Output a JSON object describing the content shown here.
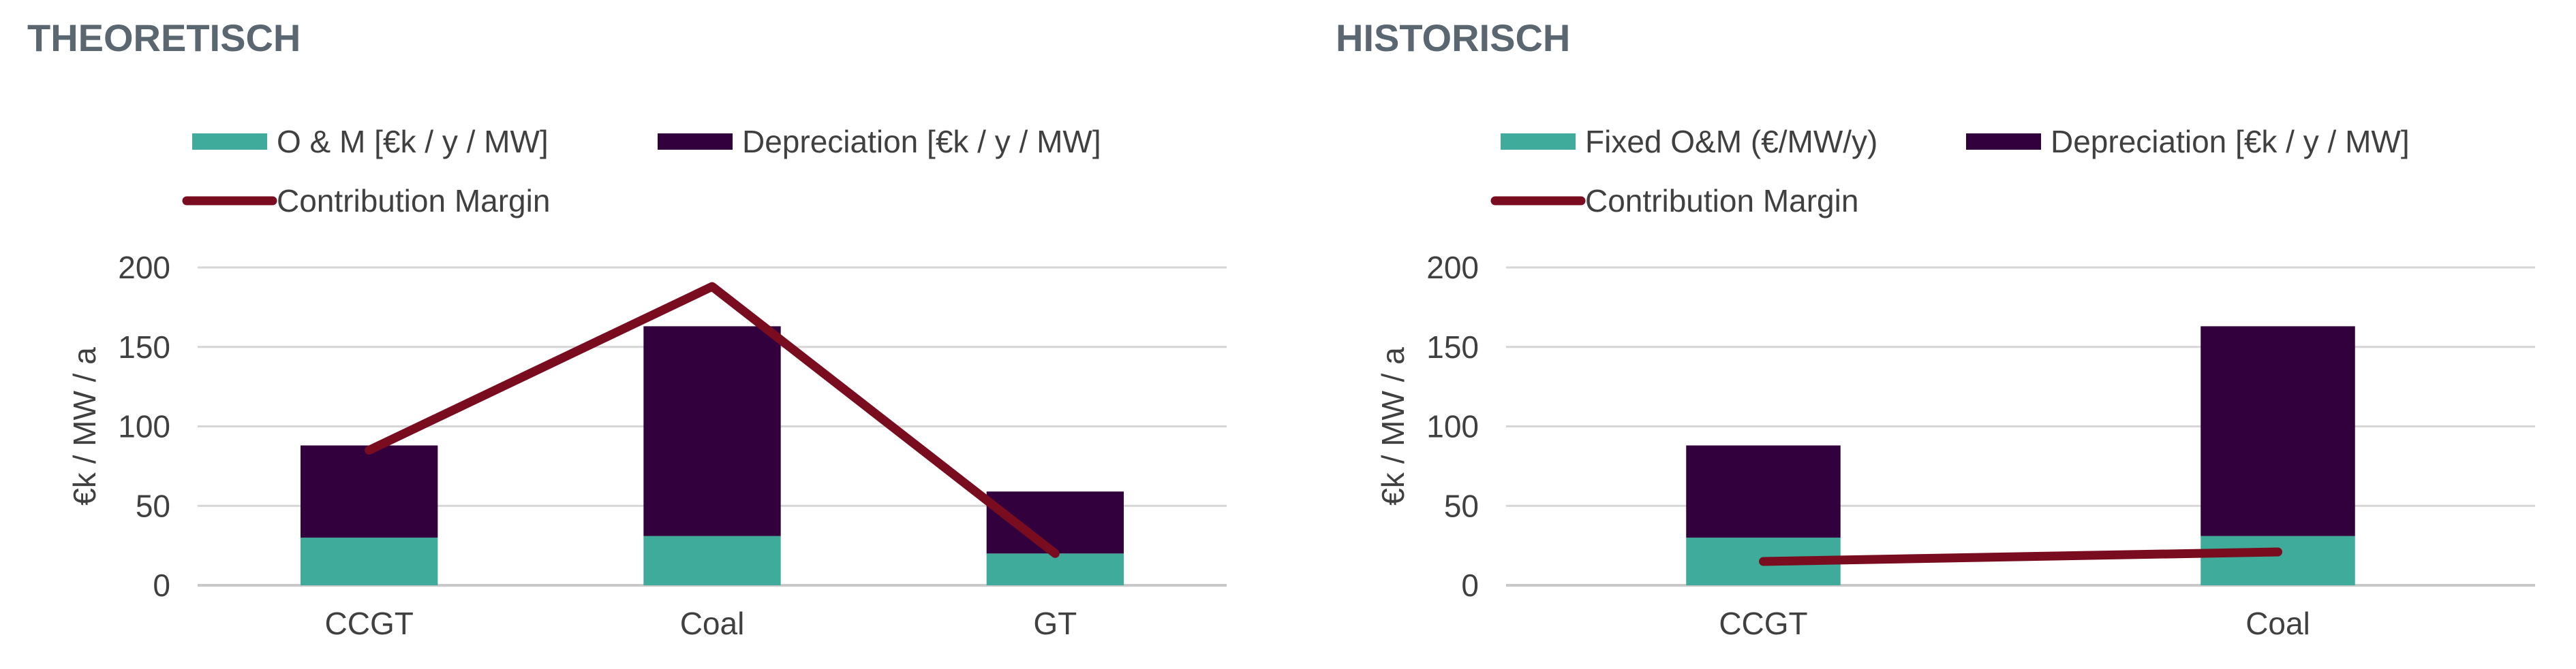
{
  "colors": {
    "om": "#3fab9a",
    "depreciation": "#32003c",
    "margin": "#7a0c20",
    "title": "#5a6670",
    "text": "#404040",
    "grid": "#d6d6d6"
  },
  "chart_data": [
    {
      "type": "bar",
      "stacked": true,
      "title": "THEORETISCH",
      "xlabel": "",
      "ylabel": "€k / MW / a",
      "ylim": [
        0,
        200
      ],
      "yticks": [
        0,
        50,
        100,
        150,
        200
      ],
      "grid": true,
      "legend_position": "top",
      "categories": [
        "CCGT",
        "Coal",
        "GT"
      ],
      "series": [
        {
          "name": "O & M [€k / y / MW]",
          "kind": "bar",
          "color": "#3fab9a",
          "values": [
            30,
            31,
            20
          ]
        },
        {
          "name": "Depreciation [€k / y / MW]",
          "kind": "bar",
          "color": "#32003c",
          "values": [
            58,
            132,
            39
          ]
        },
        {
          "name": "Contribution Margin",
          "kind": "line",
          "color": "#7a0c20",
          "values": [
            85,
            188,
            20
          ]
        }
      ]
    },
    {
      "type": "bar",
      "stacked": true,
      "title": "HISTORISCH",
      "xlabel": "",
      "ylabel": "€k / MW / a",
      "ylim": [
        0,
        200
      ],
      "yticks": [
        0,
        50,
        100,
        150,
        200
      ],
      "grid": true,
      "legend_position": "top",
      "categories": [
        "CCGT",
        "Coal"
      ],
      "series": [
        {
          "name": "Fixed O&M (€/MW/y)",
          "kind": "bar",
          "color": "#3fab9a",
          "values": [
            30,
            31
          ]
        },
        {
          "name": "Depreciation [€k / y / MW]",
          "kind": "bar",
          "color": "#32003c",
          "values": [
            58,
            132
          ]
        },
        {
          "name": "Contribution Margin",
          "kind": "line",
          "color": "#7a0c20",
          "values": [
            15,
            21
          ]
        }
      ]
    }
  ]
}
